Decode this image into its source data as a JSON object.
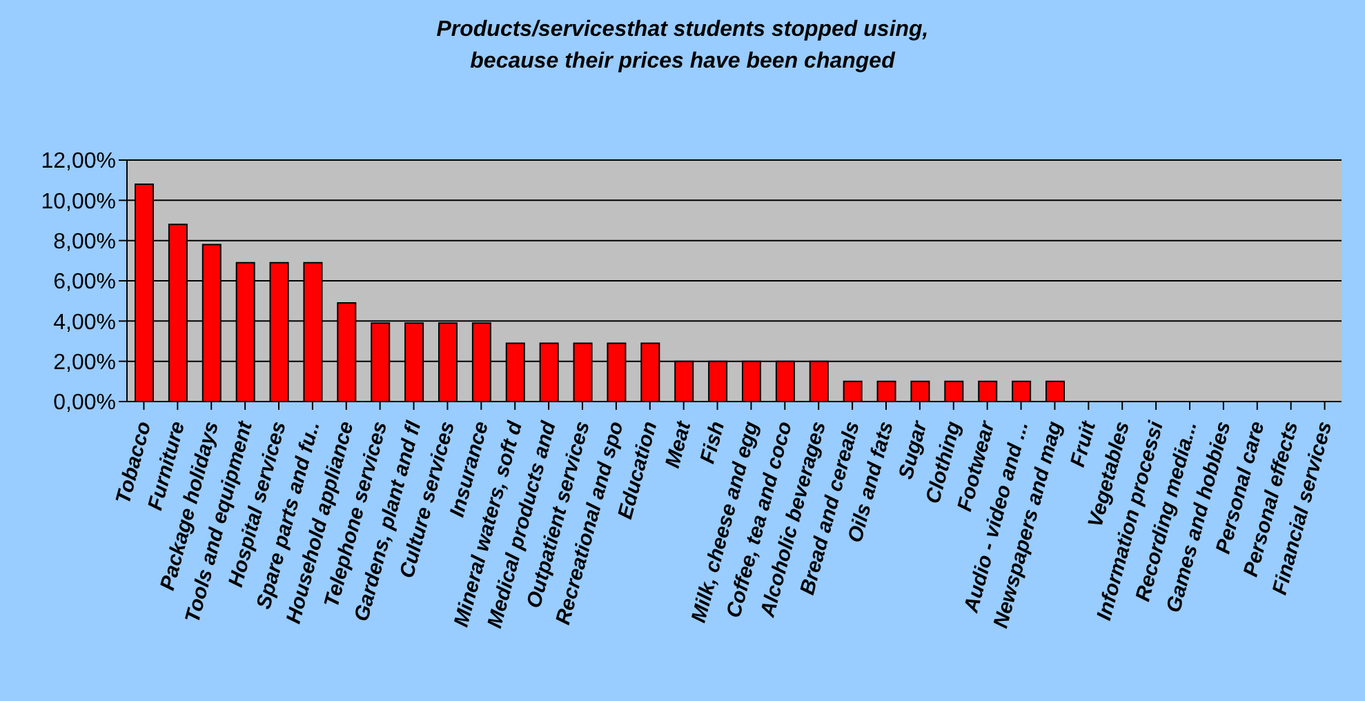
{
  "chart_data": {
    "type": "bar",
    "title": "Products/servicesthat students stopped using,\nbecause their prices have been changed",
    "categories": [
      "Tobacco",
      "Furniture",
      "Package holidays",
      "Tools and equipment",
      "Hospital services",
      "Spare parts and fu..",
      "Household appliance",
      "Telephone services",
      "Gardens, plant and fl",
      "Culture services",
      "Insurance",
      "Mineral waters, soft d",
      "Medical products and",
      "Outpatient services",
      "Recreational and spo",
      "Education",
      "Meat",
      "Fish",
      "Milk, cheese and egg",
      "Coffee, tea and coco",
      "Alcoholic beverages",
      "Bread and cereals",
      "Oils and fats",
      "Sugar",
      "Clothing",
      "Footwear",
      "Audio - video and ...",
      "Newspapers and mag",
      "Fruit",
      "Vegetables",
      "Information processi",
      "Recording media...",
      "Games and hobbies",
      "Personal care",
      "Personal effects",
      "Financial services"
    ],
    "values": [
      10.8,
      8.8,
      7.8,
      6.9,
      6.9,
      6.9,
      4.9,
      3.9,
      3.9,
      3.9,
      3.9,
      2.9,
      2.9,
      2.9,
      2.9,
      2.9,
      2.0,
      2.0,
      2.0,
      2.0,
      2.0,
      1.0,
      1.0,
      1.0,
      1.0,
      1.0,
      1.0,
      1.0,
      0,
      0,
      0,
      0,
      0,
      0,
      0,
      0
    ],
    "color": "#ff0000",
    "ylim": [
      0,
      12
    ],
    "yticks": [
      {
        "value": 0,
        "label": "0,00%"
      },
      {
        "value": 2,
        "label": "2,00%"
      },
      {
        "value": 4,
        "label": "4,00%"
      },
      {
        "value": 6,
        "label": "6,00%"
      },
      {
        "value": 8,
        "label": "8,00%"
      },
      {
        "value": 10,
        "label": "10,00%"
      },
      {
        "value": 12,
        "label": "12,00%"
      }
    ],
    "grid": "y"
  }
}
